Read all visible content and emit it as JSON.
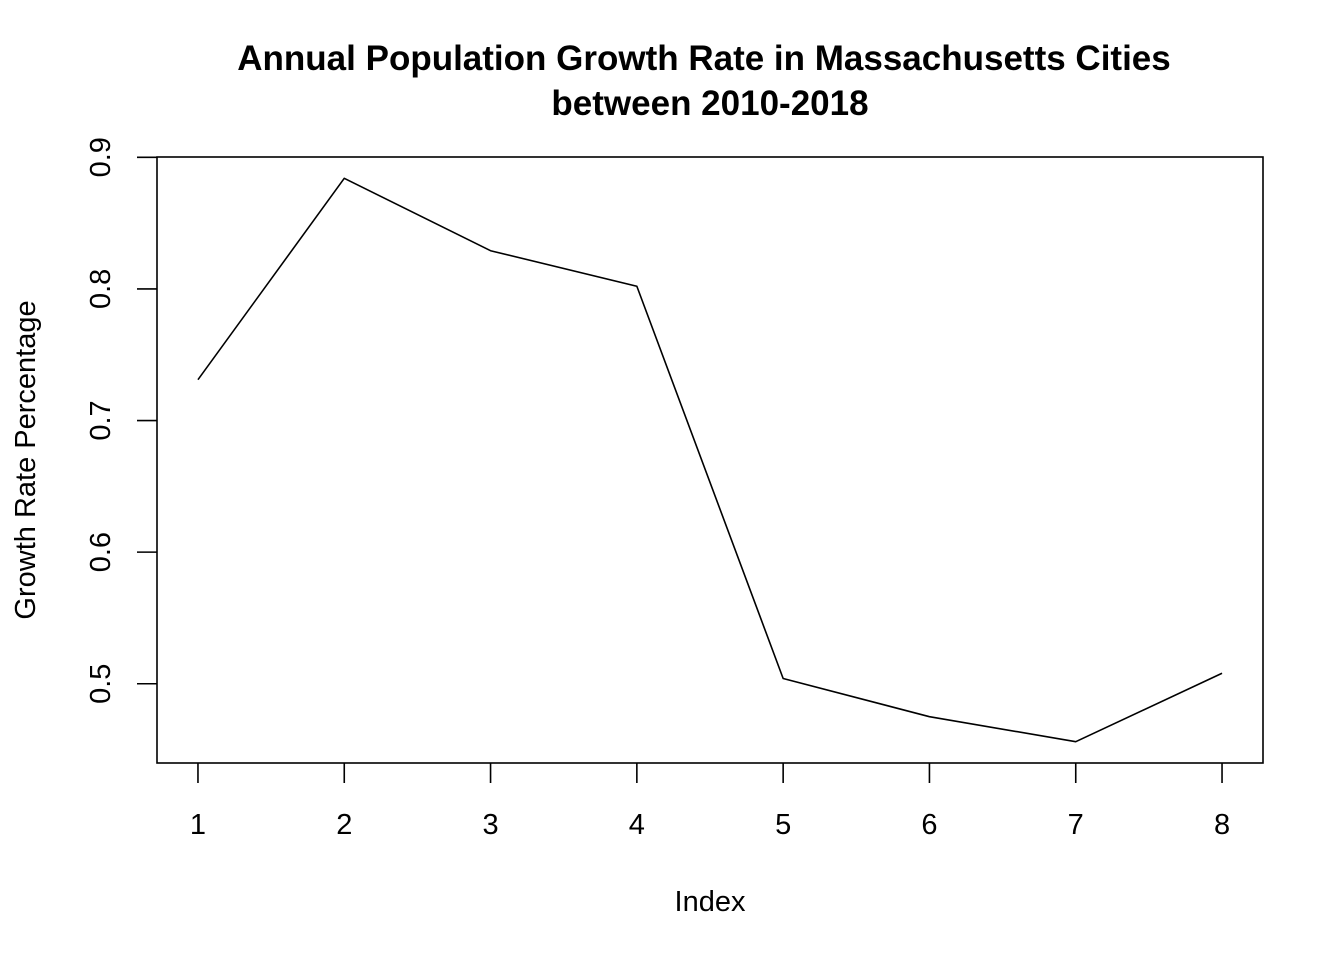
{
  "chart_data": {
    "type": "line",
    "title_lines": [
      "Annual Population Growth Rate in Massachusetts Cities",
      "between 2010-2018"
    ],
    "xlabel": "Index",
    "ylabel": "Growth Rate Percentage",
    "x": [
      1,
      2,
      3,
      4,
      5,
      6,
      7,
      8
    ],
    "series": [
      {
        "values": [
          0.731,
          0.884,
          0.829,
          0.802,
          0.504,
          0.475,
          0.456,
          0.508
        ],
        "color": "#000000"
      }
    ],
    "xticks": [
      "1",
      "2",
      "3",
      "4",
      "5",
      "6",
      "7",
      "8"
    ],
    "yticks": [
      "0.5",
      "0.6",
      "0.7",
      "0.8",
      "0.9"
    ],
    "xlim": [
      0.72,
      8.28
    ],
    "ylim": [
      0.4398,
      0.9002
    ],
    "grid": false,
    "legend": "none"
  }
}
